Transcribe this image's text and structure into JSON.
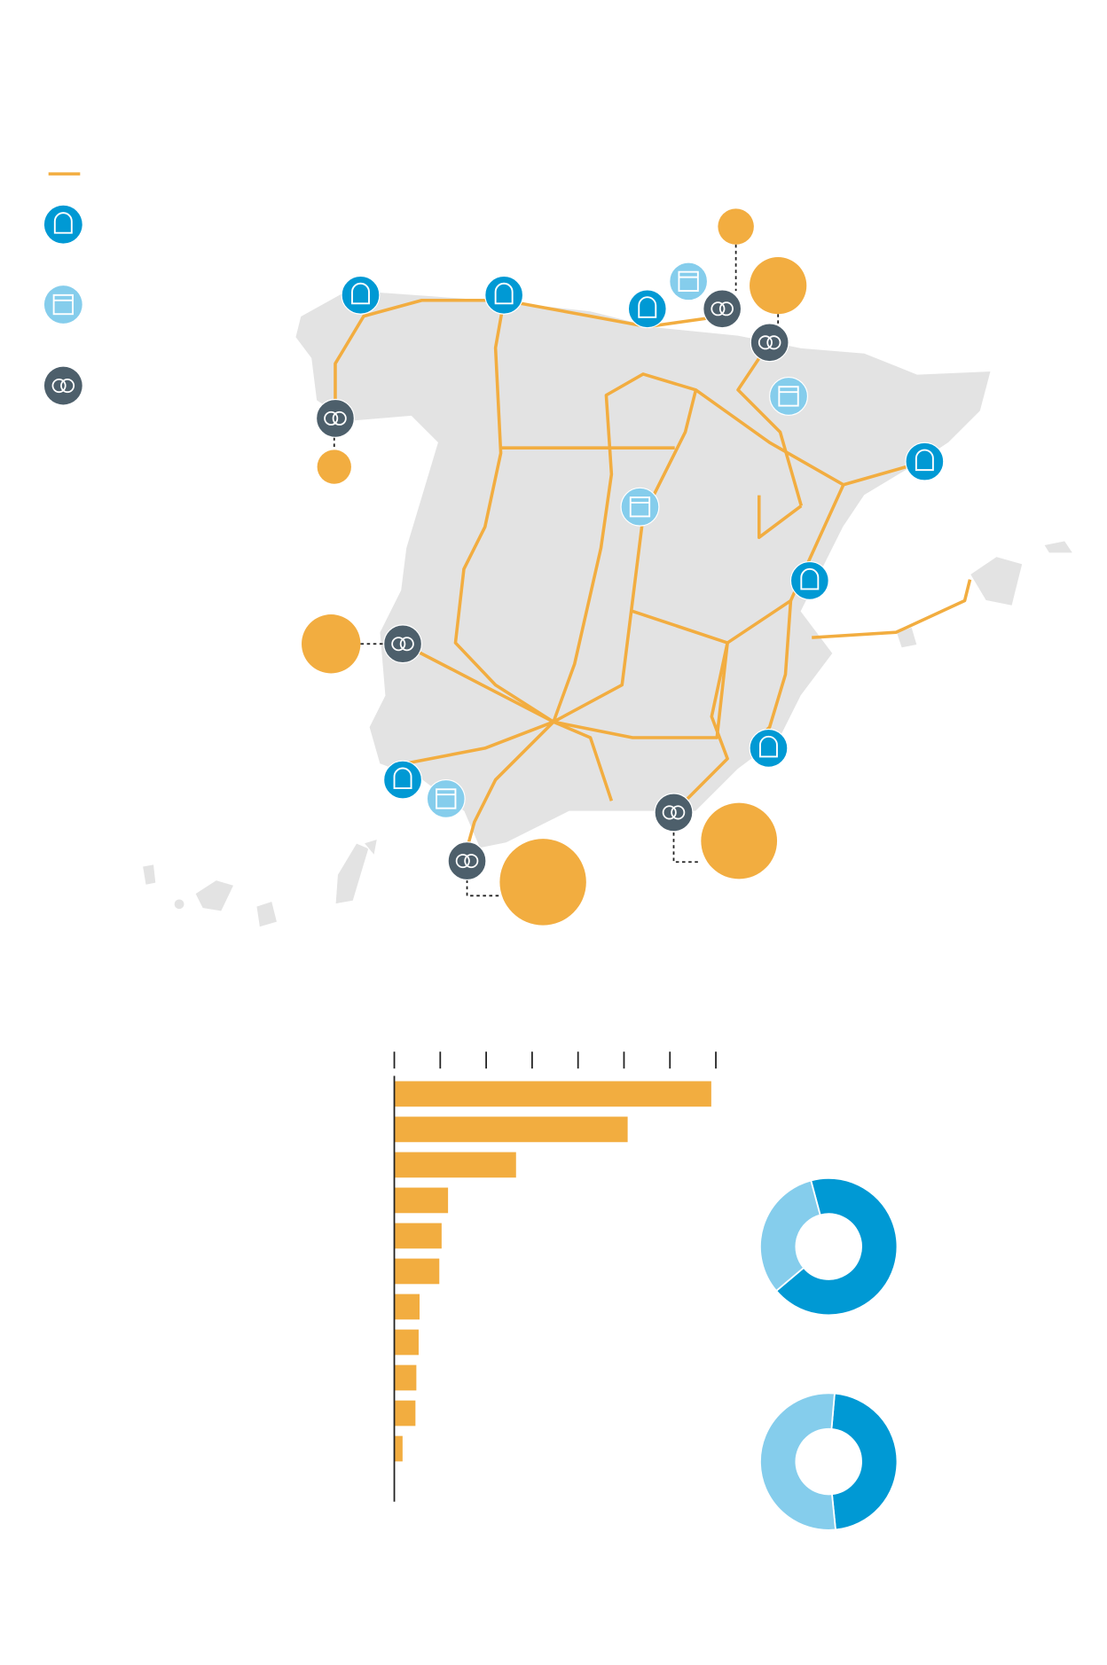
{
  "chart_data": [
    {
      "type": "bubble-map",
      "values": [
        2.9,
        7.3,
        2.6,
        7.8,
        13,
        16.8
      ],
      "color": "#f2ad40"
    },
    {
      "type": "bar",
      "categories": [
        null,
        null,
        null,
        null,
        null,
        null,
        null,
        null,
        null,
        null,
        null,
        null
      ],
      "values": [
        6.9,
        5.08,
        2.65,
        1.17,
        1.03,
        0.98,
        0.55,
        0.53,
        0.48,
        0.46,
        0.18,
        0
      ],
      "color": "#f2ad40",
      "xlim": [
        0,
        7
      ],
      "xticks": [
        0,
        1,
        2,
        3,
        4,
        5,
        6,
        7
      ]
    },
    {
      "type": "pie",
      "values": [
        68,
        32
      ],
      "colors": [
        "#0099d4",
        "#85cdec"
      ]
    },
    {
      "type": "pie",
      "values": [
        47,
        53
      ],
      "colors": [
        "#0099d4",
        "#85cdec"
      ]
    }
  ]
}
